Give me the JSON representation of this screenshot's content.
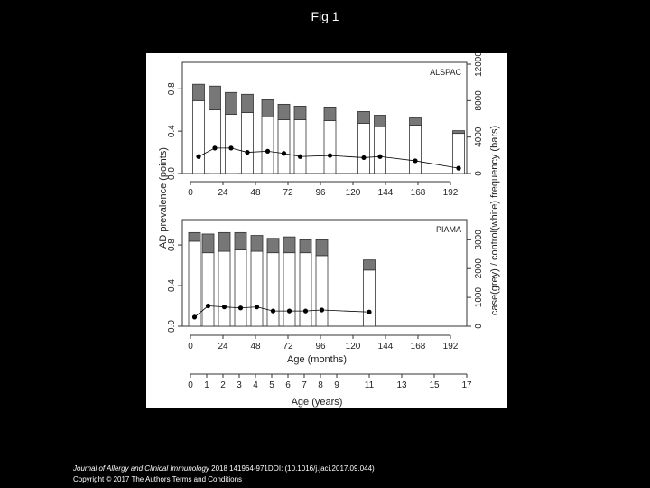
{
  "page": {
    "title": "Fig 1",
    "footer": {
      "journal": "Journal of Allergy and Clinical Immunology",
      "citation": " 2018 141964-971DOI: (10.1016/j.jaci.2017.09.044)",
      "copyright": "Copyright © 2017 The Authors",
      "terms_link": " Terms and Conditions"
    }
  },
  "colors": {
    "case_grey": "#777777",
    "control_white": "#ffffff",
    "line": "#000000"
  },
  "chart_data": [
    {
      "type": "bar",
      "panel": "ALSPAC",
      "panel_label": "ALSPAC",
      "x_ticks": [
        0,
        24,
        48,
        72,
        96,
        120,
        144,
        168,
        192
      ],
      "x_range": [
        -6,
        204
      ],
      "y_left_ticks": [
        "0.0",
        "0.4",
        "0.8"
      ],
      "y_left_values": [
        0,
        0.4,
        0.8
      ],
      "y_left_range": [
        0,
        1.05
      ],
      "y_right_ticks": [
        "0",
        "4000",
        "8000",
        "12000"
      ],
      "y_right_values": [
        0,
        4000,
        8000,
        12000
      ],
      "y_right_range": [
        0,
        12200
      ],
      "series": [
        {
          "name": "control(white)",
          "x": [
            6,
            18,
            30,
            42,
            57,
            69,
            81,
            103,
            128,
            140,
            166,
            198
          ],
          "values": [
            8000,
            7000,
            6500,
            6700,
            6200,
            5900,
            5900,
            5800,
            5500,
            5100,
            5300,
            4400
          ]
        },
        {
          "name": "case(grey)",
          "x": [
            6,
            18,
            30,
            42,
            57,
            69,
            81,
            103,
            128,
            140,
            166,
            198
          ],
          "values": [
            1800,
            2600,
            2400,
            2000,
            1900,
            1700,
            1500,
            1500,
            1300,
            1300,
            800,
            300
          ]
        },
        {
          "name": "AD prevalence",
          "x": [
            6,
            18,
            30,
            42,
            57,
            69,
            81,
            103,
            128,
            140,
            166,
            198
          ],
          "points": [
            0.16,
            0.24,
            0.24,
            0.2,
            0.21,
            0.19,
            0.16,
            0.17,
            0.15,
            0.16,
            0.12,
            0.05
          ]
        }
      ]
    },
    {
      "type": "bar",
      "panel": "PIAMA",
      "panel_label": "PIAMA",
      "x_ticks": [
        0,
        24,
        48,
        72,
        96,
        120,
        144,
        168,
        192
      ],
      "x_range": [
        -6,
        204
      ],
      "y_left_ticks": [
        "0.0",
        "0.4",
        "0.8"
      ],
      "y_left_values": [
        0,
        0.4,
        0.8
      ],
      "y_left_range": [
        0,
        1.05
      ],
      "y_right_ticks": [
        "0",
        "1000",
        "2000",
        "3000"
      ],
      "y_right_values": [
        0,
        1000,
        2000,
        3000
      ],
      "y_right_range": [
        0,
        3700
      ],
      "series": [
        {
          "name": "control(white)",
          "x": [
            3,
            13,
            25,
            37,
            49,
            61,
            73,
            85,
            97,
            132
          ],
          "values": [
            2950,
            2550,
            2600,
            2650,
            2600,
            2550,
            2550,
            2550,
            2450,
            1950
          ]
        },
        {
          "name": "case(grey)",
          "x": [
            3,
            13,
            25,
            37,
            49,
            61,
            73,
            85,
            97,
            132
          ],
          "values": [
            300,
            650,
            650,
            600,
            550,
            500,
            550,
            450,
            550,
            350
          ]
        },
        {
          "name": "AD prevalence",
          "x": [
            3,
            13,
            25,
            37,
            49,
            61,
            73,
            85,
            97,
            132
          ],
          "points": [
            0.09,
            0.2,
            0.19,
            0.18,
            0.19,
            0.15,
            0.15,
            0.15,
            0.16,
            0.14
          ]
        }
      ]
    }
  ],
  "axes": {
    "ylabel_left": "AD prevalence (points)",
    "ylabel_right": "case(grey) / control(white) frequency (bars)",
    "xlabel_months": "Age (months)",
    "xlabel_years": "Age (years)",
    "years_ticks": [
      {
        "label": "0",
        "months": 0
      },
      {
        "label": "1",
        "months": 12
      },
      {
        "label": "2",
        "months": 24
      },
      {
        "label": "3",
        "months": 36
      },
      {
        "label": "4",
        "months": 48
      },
      {
        "label": "5",
        "months": 60
      },
      {
        "label": "6",
        "months": 72
      },
      {
        "label": "7",
        "months": 84
      },
      {
        "label": "8",
        "months": 96
      },
      {
        "label": "9",
        "months": 108
      },
      {
        "label": "11",
        "months": 132
      },
      {
        "label": "13",
        "months": 156
      },
      {
        "label": "15",
        "months": 180
      },
      {
        "label": "17",
        "months": 204
      }
    ]
  }
}
